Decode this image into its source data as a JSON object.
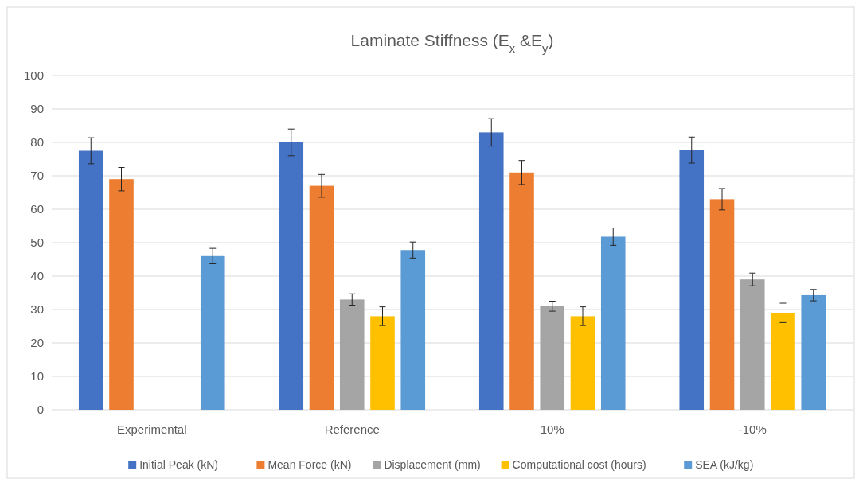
{
  "chart_data": {
    "type": "bar",
    "title": "Laminate Stiffness (E$_{x}$ &E$_{y}$)",
    "categories": [
      "Experimental",
      "Reference",
      "10%",
      "-10%"
    ],
    "series": [
      {
        "name": "Initial Peak (kN)",
        "color": "#4472c4",
        "values": [
          77.5,
          80,
          83,
          77.7
        ],
        "errors": [
          3.9,
          4,
          4.1,
          3.9
        ]
      },
      {
        "name": "Mean Force (kN)",
        "color": "#ed7d31",
        "values": [
          69,
          67,
          71,
          63
        ],
        "errors": [
          3.5,
          3.4,
          3.6,
          3.2
        ]
      },
      {
        "name": "Displacement (mm)",
        "color": "#a5a5a5",
        "values": [
          null,
          33,
          31,
          39
        ],
        "errors": [
          null,
          1.7,
          1.5,
          1.9
        ]
      },
      {
        "name": "Computational cost (hours)",
        "color": "#ffc000",
        "values": [
          null,
          28,
          28,
          29
        ],
        "errors": [
          null,
          2.8,
          2.8,
          2.9
        ]
      },
      {
        "name": "SEA (kJ/kg)",
        "color": "#5b9bd5",
        "values": [
          46,
          47.8,
          51.8,
          34.3
        ],
        "errors": [
          2.3,
          2.4,
          2.6,
          1.7
        ]
      }
    ],
    "ylim": [
      0,
      100
    ],
    "yticks": [
      0,
      10,
      20,
      30,
      40,
      50,
      60,
      70,
      80,
      90,
      100
    ],
    "grid": "y",
    "legend": "bottom"
  }
}
